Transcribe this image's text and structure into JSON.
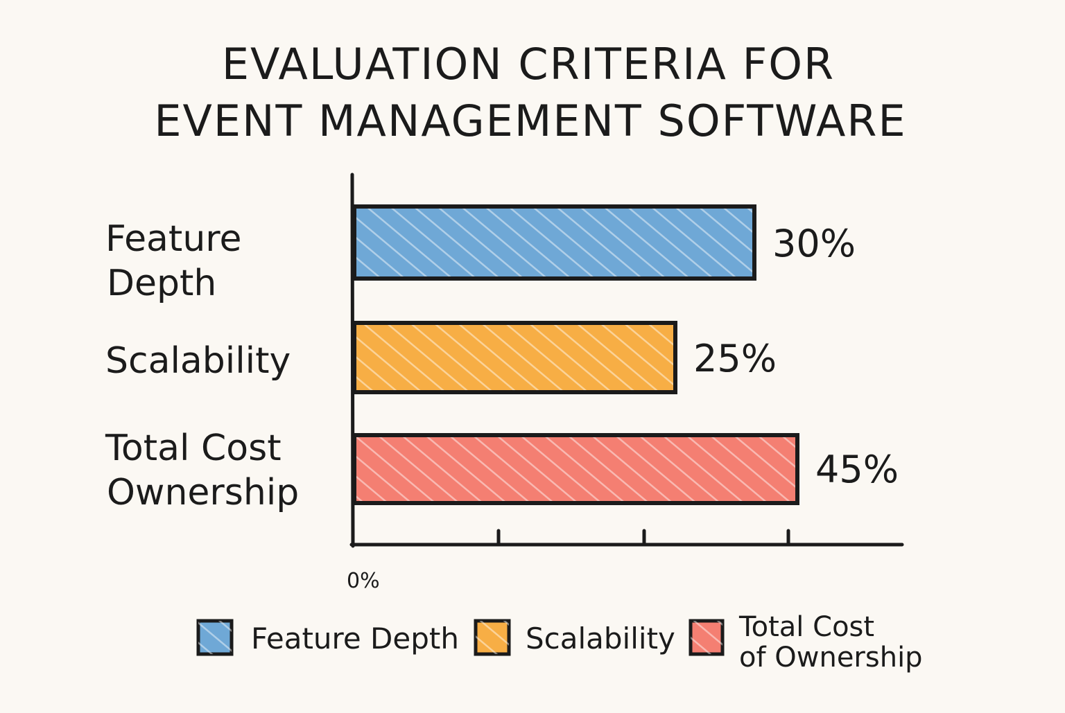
{
  "chart_data": {
    "type": "bar",
    "orientation": "horizontal",
    "title_lines": [
      "EVALUATION CRITERIA FOR",
      "EVENT MANAGEMENT SOFTWARE"
    ],
    "categories": [
      {
        "id": "feature-depth",
        "label_lines": [
          "Feature",
          "Depth"
        ],
        "value": 30,
        "value_label": "30%",
        "color": "#6fa8d6"
      },
      {
        "id": "scalability",
        "label_lines": [
          "Scalability"
        ],
        "value": 25,
        "value_label": "25%",
        "color": "#f7ae45"
      },
      {
        "id": "total-cost-ownership",
        "label_lines": [
          "Total Cost",
          "Ownership"
        ],
        "value": 45,
        "value_label": "45%",
        "color": "#f47f72"
      }
    ],
    "x_axis": {
      "tick_label": "0%"
    },
    "legend": {
      "placement": "bottom",
      "items": [
        {
          "label_lines": [
            "Feature Depth"
          ],
          "color": "#6fa8d6"
        },
        {
          "label_lines": [
            "Scalability"
          ],
          "color": "#f7ae45"
        },
        {
          "label_lines": [
            "Total Cost",
            "of Ownership"
          ],
          "color": "#f47f72"
        }
      ]
    },
    "xlim": [
      0,
      50
    ]
  }
}
